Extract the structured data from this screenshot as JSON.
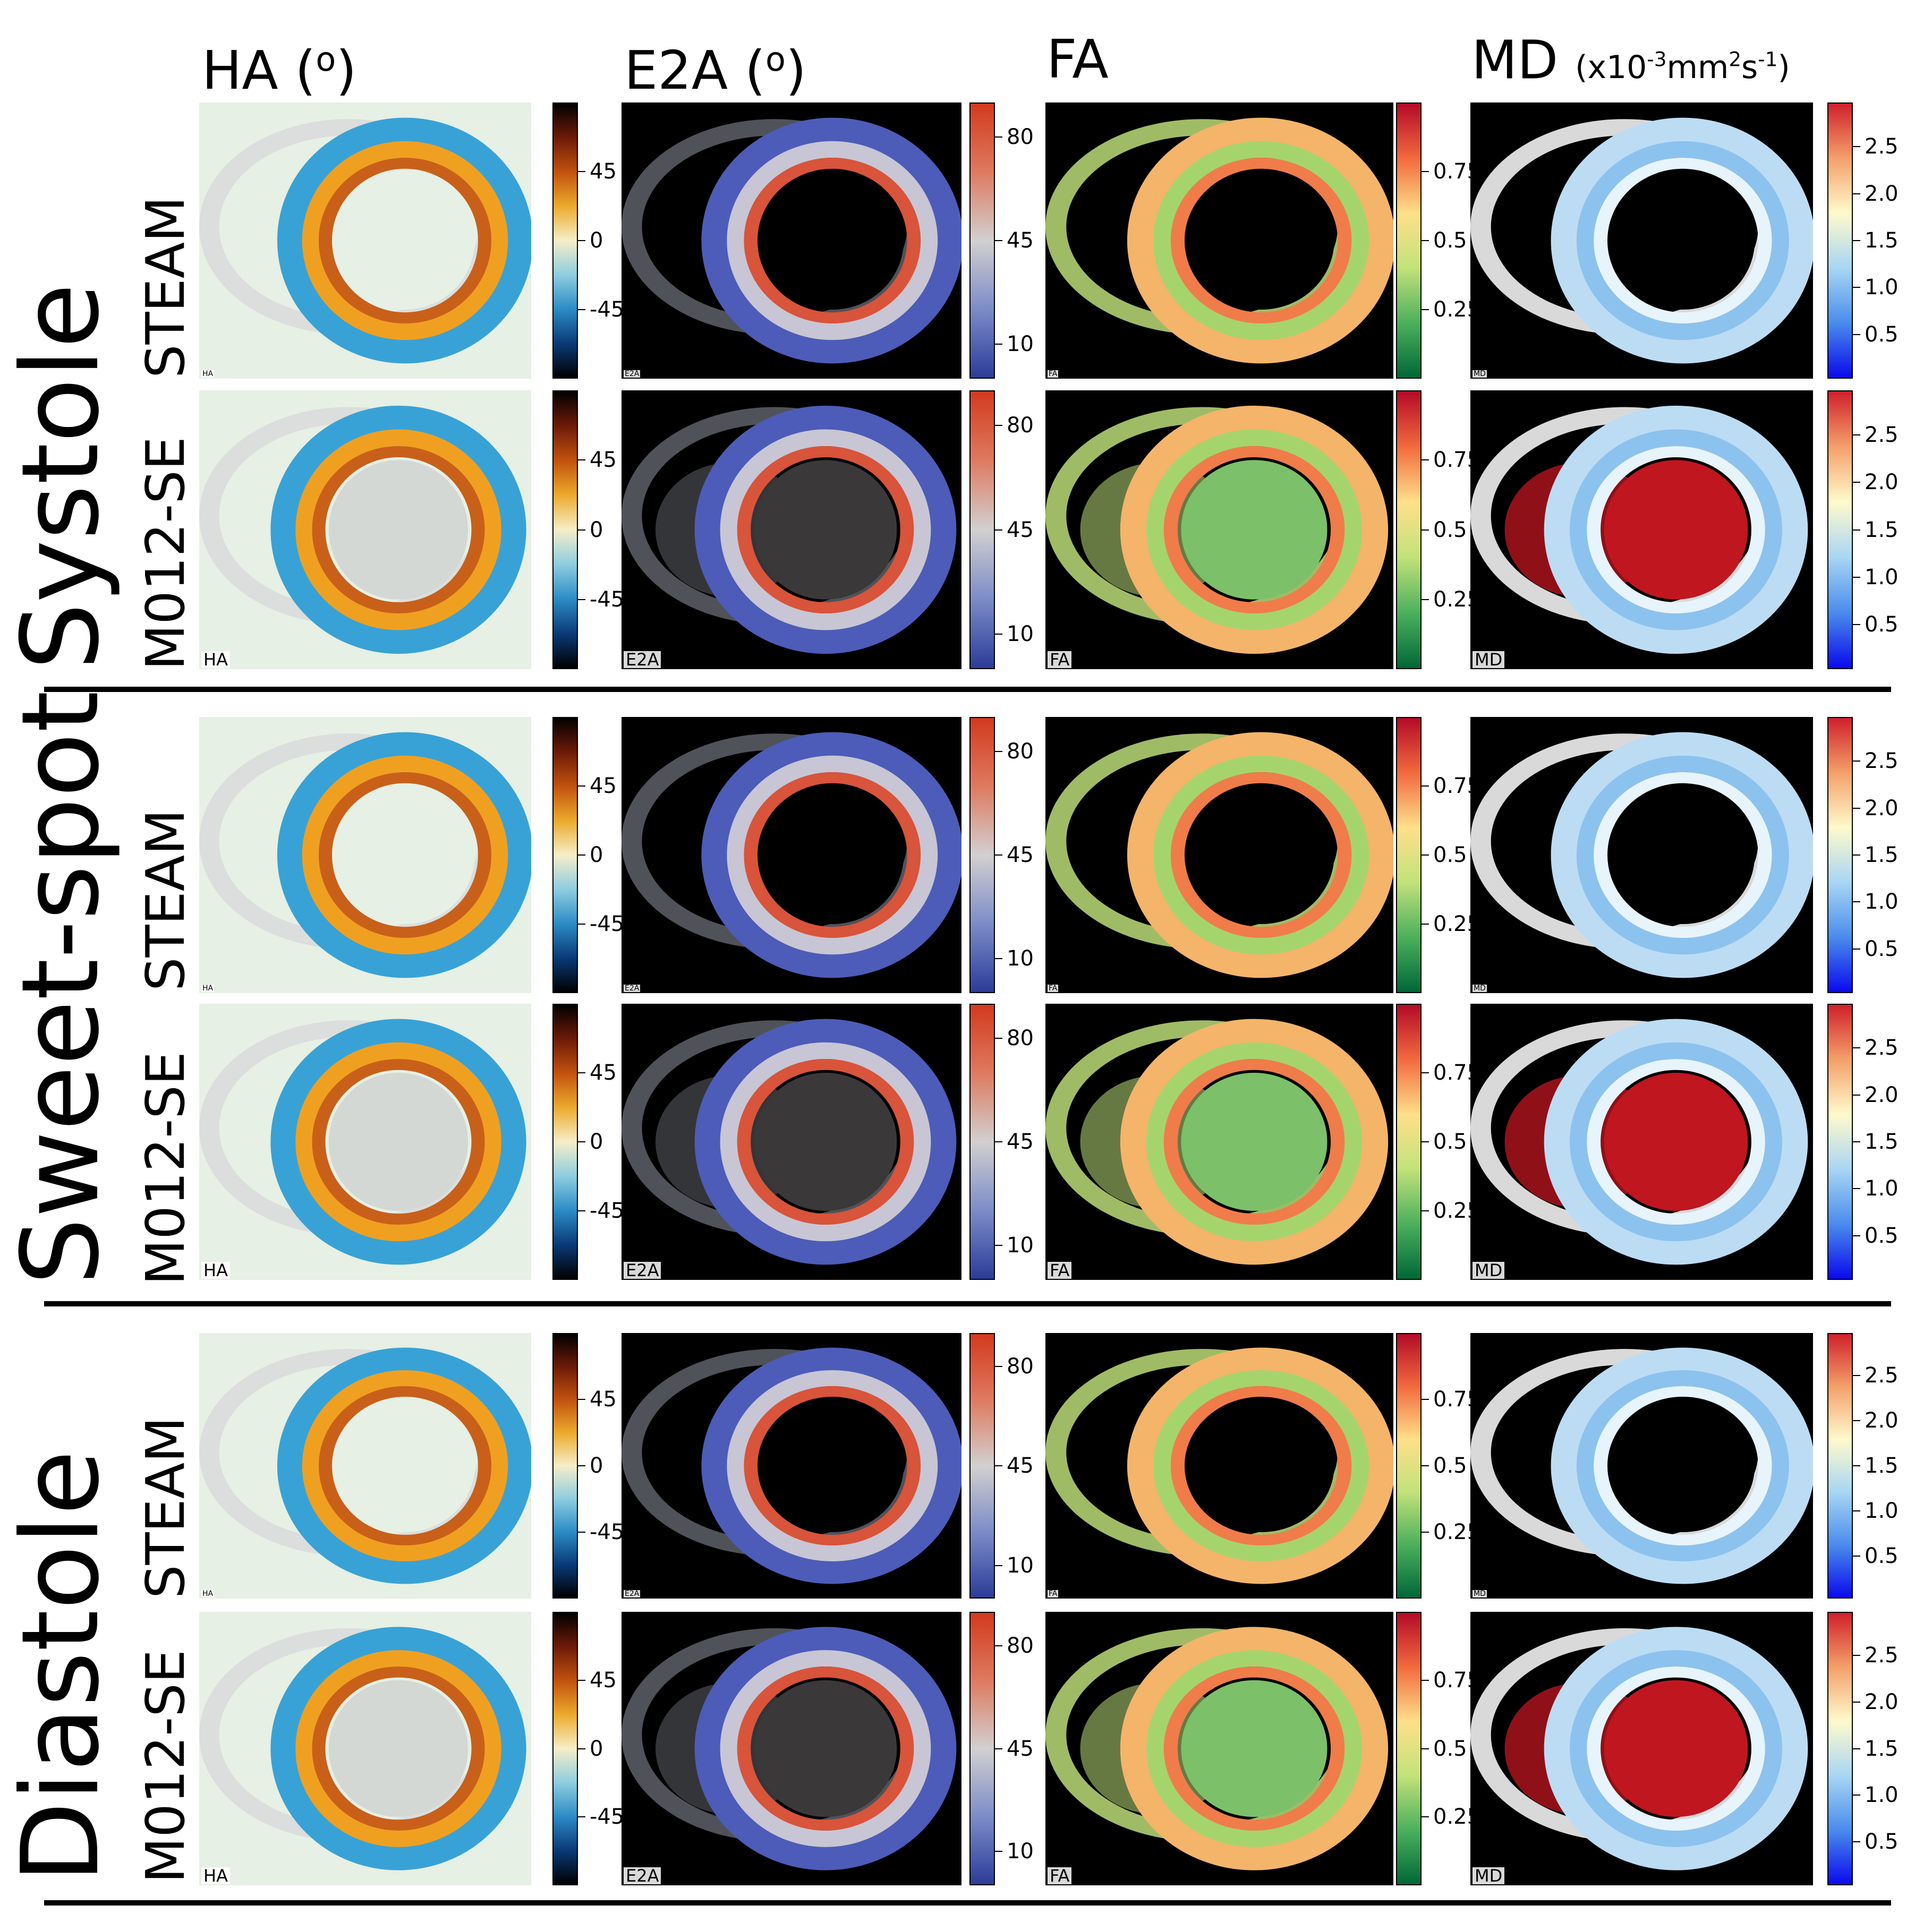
{
  "columns": [
    {
      "key": "ha",
      "label": "HA (",
      "sup": "o",
      "suffix": ")",
      "unit_html": ""
    },
    {
      "key": "e2a",
      "label": "E2A (",
      "sup": "o",
      "suffix": ")",
      "unit_html": ""
    },
    {
      "key": "fa",
      "label": "FA",
      "sup": "",
      "suffix": "",
      "unit_html": ""
    },
    {
      "key": "md",
      "label": "MD ",
      "sup": "",
      "suffix": "",
      "unit_html": "(x10<sup>-3</sup>mm<sup>2</sup>s<sup>-1</sup>)"
    }
  ],
  "phases": [
    "Systole",
    "Sweet-spot",
    "Diastole"
  ],
  "sequences": [
    "STEAM",
    "M012-SE"
  ],
  "map_tags": {
    "ha": "HA",
    "e2a": "E2A",
    "fa": "FA",
    "md": "MD"
  },
  "colorbars": {
    "ha": {
      "ticks": [
        "45",
        "0",
        "-45"
      ],
      "colors": [
        "#000000",
        "#6e1a08",
        "#c2520e",
        "#ecaa2c",
        "#f6eec8",
        "#8ecde0",
        "#2c8cc6",
        "#0a3a78",
        "#000000"
      ],
      "tick_pos": [
        0.25,
        0.5,
        0.75
      ]
    },
    "e2a": {
      "ticks": [
        "80",
        "45",
        "10"
      ],
      "colors": [
        "#d23a1e",
        "#de7a60",
        "#d2d0d0",
        "#7c8cc8",
        "#2c3c98"
      ],
      "tick_pos": [
        0.125,
        0.5,
        0.875
      ]
    },
    "fa": {
      "ticks": [
        "0.75",
        "0.5",
        "0.25"
      ],
      "colors": [
        "#b40a26",
        "#f26a3e",
        "#fee08a",
        "#c2e27a",
        "#4cb05c",
        "#006837"
      ],
      "tick_pos": [
        0.25,
        0.5,
        0.75
      ]
    },
    "md": {
      "ticks": [
        "2.5",
        "2.0",
        "1.5",
        "1.0",
        "0.5"
      ],
      "colors": [
        "#d0202a",
        "#f4a06a",
        "#fffacc",
        "#a8d6f4",
        "#4a8cec",
        "#0a0aec"
      ],
      "tick_pos": [
        0.16,
        0.33,
        0.5,
        0.67,
        0.84
      ]
    }
  },
  "map_colors": {
    "ha": {
      "bg": "#e6f0e4",
      "faint": "#d8dada",
      "outer": "#38a2d6",
      "mid": "#f0a020",
      "inner": "#c8601a",
      "fill": "#d4d8d4"
    },
    "e2a": {
      "bg": "#000000",
      "faint": "#5e6068",
      "outer": "#4c5cb8",
      "mid": "#c8c6d4",
      "inner": "#d8543a",
      "fill": "#3a3838"
    },
    "fa": {
      "bg": "#000000",
      "faint": "#bcdc78",
      "outer": "#f4b46a",
      "mid": "#a6d46c",
      "inner": "#f07c4a",
      "fill": "#7cc06a"
    },
    "md": {
      "bg": "#000000",
      "faint": "#ffffff",
      "outer": "#bcdcf4",
      "mid": "#8cc2ee",
      "inner": "#e8f4fc",
      "fill": "#c01620"
    }
  }
}
